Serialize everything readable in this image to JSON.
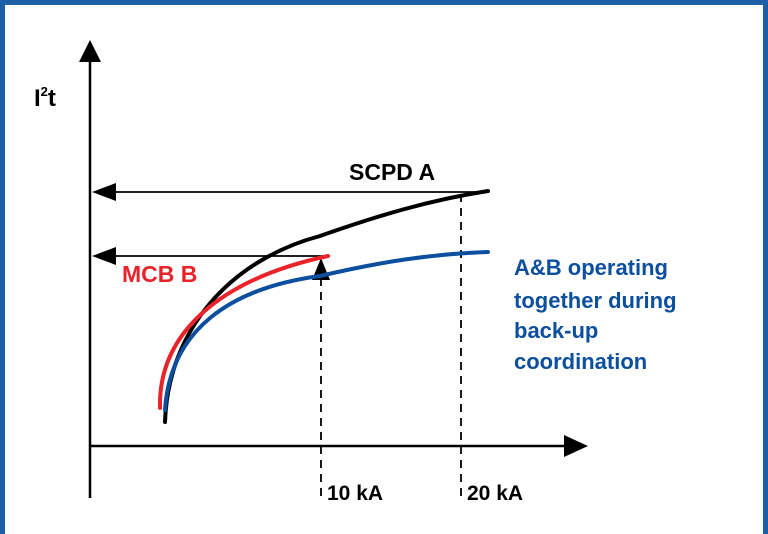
{
  "diagram": {
    "y_axis_label": "I",
    "y_axis_label_sup": "2",
    "y_axis_label_suffix": "t",
    "curve_a_label": "SCPD A",
    "curve_b_label": "MCB B",
    "combined_label_lines": [
      "A&B operating",
      "together during",
      "back-up",
      "coordination"
    ],
    "x_tick_1": "10 kA",
    "x_tick_2": "20 kA",
    "colors": {
      "frame": "#1d5fa8",
      "curve_a": "#000000",
      "curve_b": "#e8232a",
      "combined": "#0b4f9e",
      "axes": "#000000"
    }
  }
}
